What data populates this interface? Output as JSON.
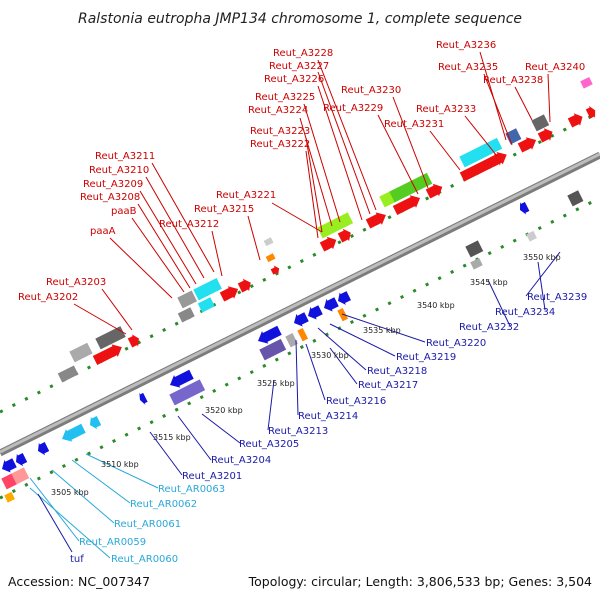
{
  "title": "Ralstonia eutropha JMP134 chromosome 1, complete sequence",
  "footer": {
    "accession": "Accession: NC_007347",
    "topology": "Topology: circular; Length: 3,806,533 bp; Genes: 3,504"
  },
  "colors": {
    "forward_label": "#cc0000",
    "reverse_label": "#1a1aa6",
    "rna_label": "#2aa8d8",
    "backbone": "#9a9a9a",
    "dots": "#2a8a2a",
    "forward_gene": "#ee1111",
    "reverse_gene": "#1111dd",
    "cyan_gene": "#22e0f0",
    "green_gene": "#99ee22",
    "gray_gene": "#888888"
  },
  "forward_labels": [
    {
      "text": "Reut_A3236"
    },
    {
      "text": "Reut_A3235"
    },
    {
      "text": "Reut_A3240"
    },
    {
      "text": "Reut_A3238"
    },
    {
      "text": "Reut_A3228"
    },
    {
      "text": "Reut_A3227"
    },
    {
      "text": "Reut_A3226"
    },
    {
      "text": "Reut_A3230"
    },
    {
      "text": "Reut_A3225"
    },
    {
      "text": "Reut_A3224"
    },
    {
      "text": "Reut_A3229"
    },
    {
      "text": "Reut_A3233"
    },
    {
      "text": "Reut_A3231"
    },
    {
      "text": "Reut_A3223"
    },
    {
      "text": "Reut_A3222"
    },
    {
      "text": "Reut_A3211"
    },
    {
      "text": "Reut_A3210"
    },
    {
      "text": "Reut_A3209"
    },
    {
      "text": "Reut_A3208"
    },
    {
      "text": "Reut_A3221"
    },
    {
      "text": "Reut_A3215"
    },
    {
      "text": "paaB"
    },
    {
      "text": "Reut_A3212"
    },
    {
      "text": "paaA"
    },
    {
      "text": "Reut_A3203"
    },
    {
      "text": "Reut_A3202"
    }
  ],
  "reverse_labels": [
    {
      "text": "Reut_A3239"
    },
    {
      "text": "Reut_A3234"
    },
    {
      "text": "Reut_A3232"
    },
    {
      "text": "Reut_A3220"
    },
    {
      "text": "Reut_A3219"
    },
    {
      "text": "Reut_A3218"
    },
    {
      "text": "Reut_A3217"
    },
    {
      "text": "Reut_A3216"
    },
    {
      "text": "Reut_A3214"
    },
    {
      "text": "Reut_A3213"
    },
    {
      "text": "Reut_A3205"
    },
    {
      "text": "Reut_A3204"
    },
    {
      "text": "Reut_A3201"
    }
  ],
  "rna_labels": [
    {
      "text": "Reut_AR0063"
    },
    {
      "text": "Reut_AR0062"
    },
    {
      "text": "Reut_AR0061"
    },
    {
      "text": "Reut_AR0059"
    },
    {
      "text": "Reut_AR0060"
    },
    {
      "text": "tuf"
    }
  ],
  "ticks": [
    {
      "text": "3505 kbp"
    },
    {
      "text": "3510 kbp"
    },
    {
      "text": "3515 kbp"
    },
    {
      "text": "3520 kbp"
    },
    {
      "text": "3525 kbp"
    },
    {
      "text": "3530 kbp"
    },
    {
      "text": "3535 kbp"
    },
    {
      "text": "3540 kbp"
    },
    {
      "text": "3545 kbp"
    },
    {
      "text": "3550 kbp"
    }
  ]
}
